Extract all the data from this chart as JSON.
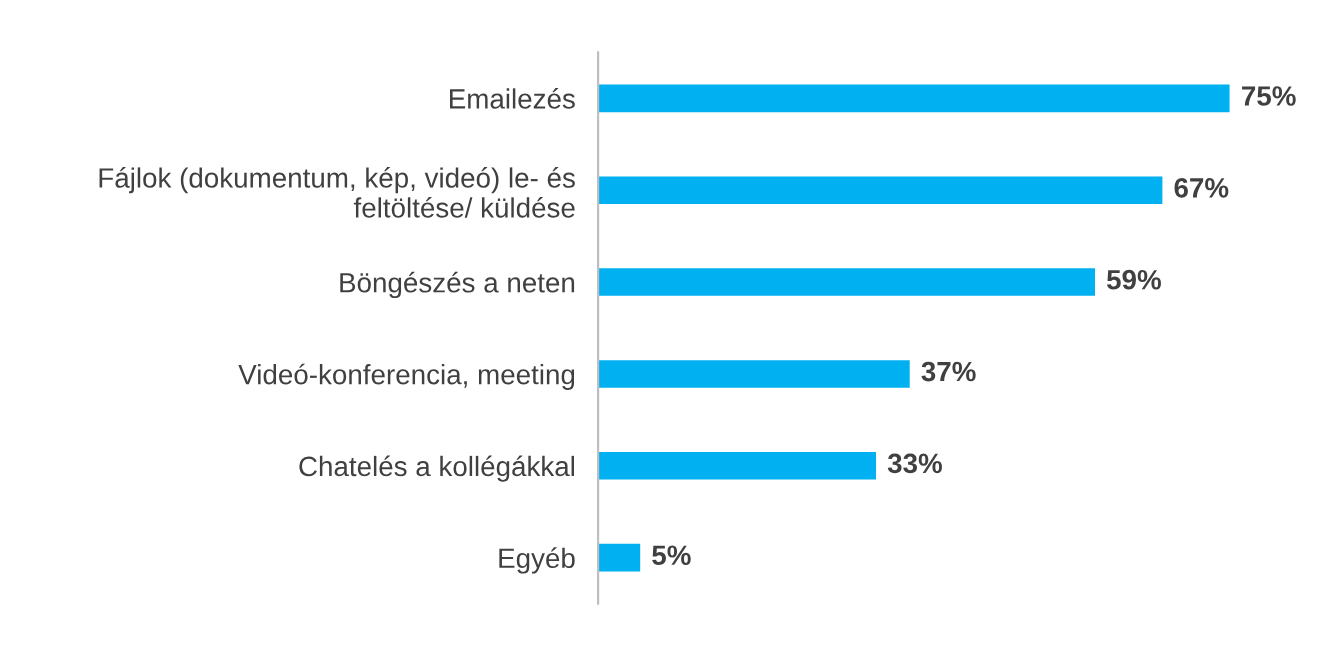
{
  "chart_data": {
    "type": "bar",
    "orientation": "horizontal",
    "categories": [
      "Emailezés",
      "Fájlok (dokumentum, kép, videó) le- és\nfeltöltése/ küldése",
      "Böngészés a neten",
      "Videó-konferencia, meeting",
      "Chatelés a kollégákkal",
      "Egyéb"
    ],
    "values": [
      75,
      67,
      59,
      37,
      33,
      5
    ],
    "value_labels": [
      "75%",
      "67%",
      "59%",
      "37%",
      "33%",
      "5%"
    ],
    "color": "#00b0f0",
    "grid": false,
    "legend": false
  }
}
